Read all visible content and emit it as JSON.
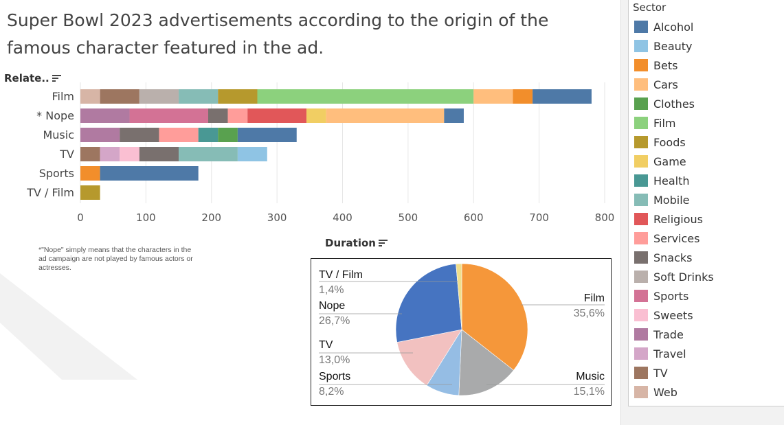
{
  "title": "Super Bowl 2023 advertisements according to the origin of the famous character featured in the ad.",
  "bar_sort_label": "Relate..",
  "pie_sort_label": "Duration",
  "note": "*\"Nope\" simply means that the characters in the ad campaign are not played by famous actors or actresses.",
  "legend": {
    "title": "Sector",
    "items": [
      {
        "name": "Alcohol",
        "color": "#4e79a7"
      },
      {
        "name": "Beauty",
        "color": "#8fc4e4"
      },
      {
        "name": "Bets",
        "color": "#f28e2b"
      },
      {
        "name": "Cars",
        "color": "#ffbe7d"
      },
      {
        "name": "Clothes",
        "color": "#59a14f"
      },
      {
        "name": "Film",
        "color": "#8cd17d"
      },
      {
        "name": "Foods",
        "color": "#b6992d"
      },
      {
        "name": "Game",
        "color": "#f1ce63"
      },
      {
        "name": "Health",
        "color": "#499894"
      },
      {
        "name": "Mobile",
        "color": "#86bcb6"
      },
      {
        "name": "Religious",
        "color": "#e15759"
      },
      {
        "name": "Services",
        "color": "#ff9d9a"
      },
      {
        "name": "Snacks",
        "color": "#79706e"
      },
      {
        "name": "Soft Drinks",
        "color": "#bab0ac"
      },
      {
        "name": "Sports",
        "color": "#d37295"
      },
      {
        "name": "Sweets",
        "color": "#fabfd2"
      },
      {
        "name": "Trade",
        "color": "#b07aa1"
      },
      {
        "name": "Travel",
        "color": "#d4a6c8"
      },
      {
        "name": "TV",
        "color": "#9d7660"
      },
      {
        "name": "Web",
        "color": "#d7b5a6"
      }
    ]
  },
  "chart_data": [
    {
      "type": "bar",
      "orientation": "horizontal",
      "stacked": true,
      "title": "",
      "ylabel": "Relate..",
      "xlim": [
        0,
        800
      ],
      "xticks": [
        0,
        100,
        200,
        300,
        400,
        500,
        600,
        700,
        800
      ],
      "grid": true,
      "categories": [
        "Film",
        "* Nope",
        "Music",
        "TV",
        "Sports",
        "TV / Film"
      ],
      "stacks": [
        {
          "category": "Film",
          "segments": [
            {
              "sector": "Web",
              "value": 30
            },
            {
              "sector": "TV",
              "value": 60
            },
            {
              "sector": "Soft Drinks",
              "value": 60
            },
            {
              "sector": "Mobile",
              "value": 60
            },
            {
              "sector": "Foods",
              "value": 60
            },
            {
              "sector": "Film",
              "value": 330
            },
            {
              "sector": "Cars",
              "value": 60
            },
            {
              "sector": "Bets",
              "value": 30
            },
            {
              "sector": "Alcohol",
              "value": 90
            }
          ]
        },
        {
          "category": "* Nope",
          "segments": [
            {
              "sector": "Trade",
              "value": 75
            },
            {
              "sector": "Sports",
              "value": 120
            },
            {
              "sector": "Snacks",
              "value": 30
            },
            {
              "sector": "Services",
              "value": 30
            },
            {
              "sector": "Religious",
              "value": 90
            },
            {
              "sector": "Game",
              "value": 30
            },
            {
              "sector": "Cars",
              "value": 180
            },
            {
              "sector": "Alcohol",
              "value": 30
            }
          ]
        },
        {
          "category": "Music",
          "segments": [
            {
              "sector": "Trade",
              "value": 60
            },
            {
              "sector": "Snacks",
              "value": 60
            },
            {
              "sector": "Services",
              "value": 60
            },
            {
              "sector": "Health",
              "value": 30
            },
            {
              "sector": "Clothes",
              "value": 30
            },
            {
              "sector": "Alcohol",
              "value": 90
            }
          ]
        },
        {
          "category": "TV",
          "segments": [
            {
              "sector": "TV",
              "value": 30
            },
            {
              "sector": "Travel",
              "value": 30
            },
            {
              "sector": "Sweets",
              "value": 30
            },
            {
              "sector": "Snacks",
              "value": 60
            },
            {
              "sector": "Mobile",
              "value": 90
            },
            {
              "sector": "Beauty",
              "value": 45
            }
          ]
        },
        {
          "category": "Sports",
          "segments": [
            {
              "sector": "Bets",
              "value": 30
            },
            {
              "sector": "Alcohol",
              "value": 150
            }
          ]
        },
        {
          "category": "TV / Film",
          "segments": [
            {
              "sector": "Foods",
              "value": 30
            }
          ]
        }
      ]
    },
    {
      "type": "pie",
      "title": "",
      "slices": [
        {
          "label": "Film",
          "value": 35.6,
          "pct": "35,6%",
          "color": "#f5973a"
        },
        {
          "label": "Music",
          "value": 15.1,
          "pct": "15,1%",
          "color": "#a9aaab"
        },
        {
          "label": "Sports",
          "value": 8.2,
          "pct": "8,2%",
          "color": "#95bde4"
        },
        {
          "label": "TV",
          "value": 13.0,
          "pct": "13,0%",
          "color": "#f2c1c0"
        },
        {
          "label": "Nope",
          "value": 26.7,
          "pct": "26,7%",
          "color": "#4674c1"
        },
        {
          "label": "TV / Film",
          "value": 1.4,
          "pct": "1,4%",
          "color": "#f0de8c"
        }
      ]
    }
  ]
}
